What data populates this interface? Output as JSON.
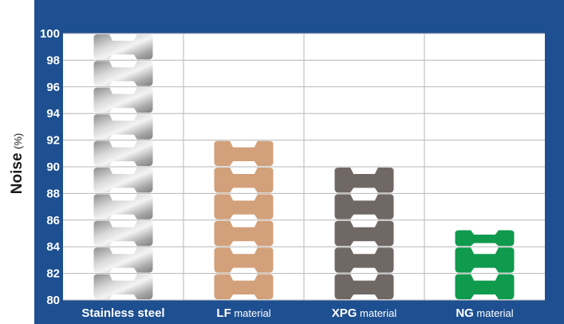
{
  "chart_data": {
    "type": "bar",
    "title": "",
    "ylabel": "Noise",
    "yunit": "(%)",
    "xlabel": "",
    "ylim": [
      80,
      100
    ],
    "yticks": [
      "80",
      "82",
      "84",
      "86",
      "88",
      "90",
      "92",
      "94",
      "96",
      "98",
      "100"
    ],
    "grid": true,
    "categories": [
      {
        "main": "Stainless steel",
        "sub": "",
        "value": 100,
        "color": "#a6a6a6"
      },
      {
        "main": "LF",
        "sub": " material",
        "value": 92.2,
        "color": "#d2a07a"
      },
      {
        "main": "XPG",
        "sub": " material",
        "value": 90.2,
        "color": "#706865"
      },
      {
        "main": "NG",
        "sub": " material",
        "value": 85.3,
        "color": "#0f9a4d"
      }
    ]
  },
  "colors": {
    "frame": "#1d4f91",
    "plot_background": "#ffffff",
    "grid": "#b7b7b7"
  }
}
